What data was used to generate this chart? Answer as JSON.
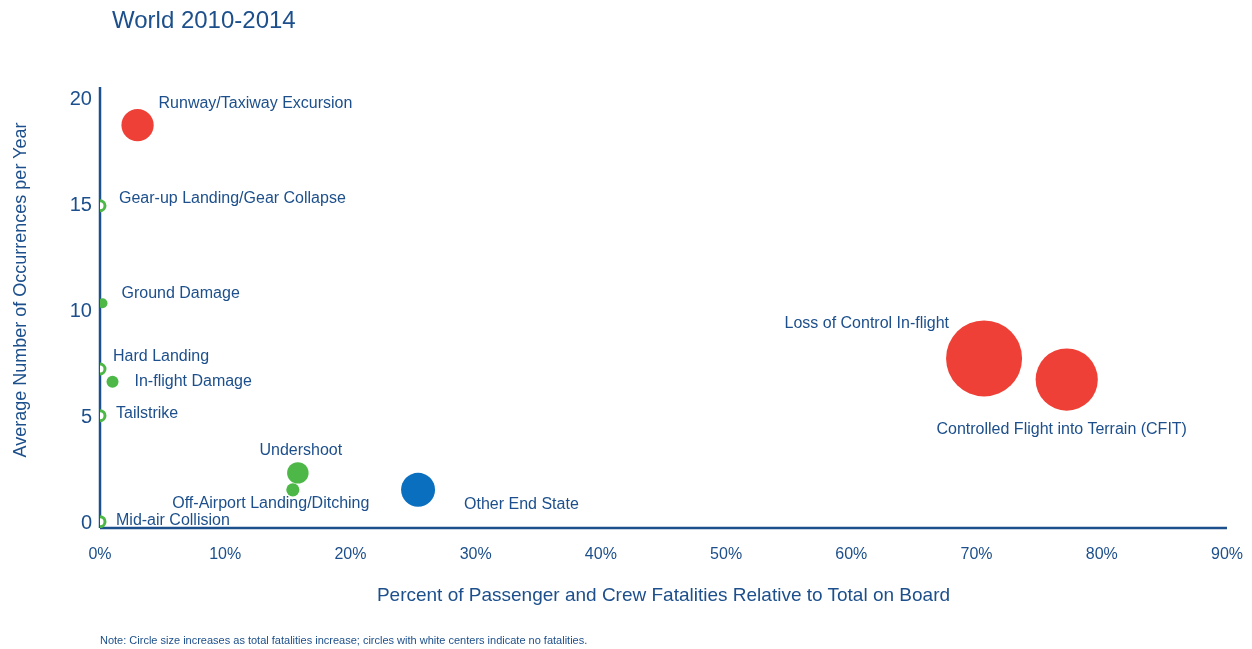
{
  "chart_data": {
    "type": "bubble",
    "title": "World 2010-2014",
    "xlabel": "Percent of Passenger and Crew Fatalities Relative to Total on Board",
    "ylabel": "Average Number of Occurrences per Year",
    "xlim": [
      0,
      90
    ],
    "ylim": [
      -0.3,
      20.5
    ],
    "xticks": [
      {
        "value": 0,
        "label": "0%"
      },
      {
        "value": 10,
        "label": "10%"
      },
      {
        "value": 20,
        "label": "20%"
      },
      {
        "value": 30,
        "label": "30%"
      },
      {
        "value": 40,
        "label": "40%"
      },
      {
        "value": 50,
        "label": "50%"
      },
      {
        "value": 60,
        "label": "60%"
      },
      {
        "value": 70,
        "label": "70%"
      },
      {
        "value": 80,
        "label": "80%"
      },
      {
        "value": 90,
        "label": "90%"
      }
    ],
    "yticks": [
      0,
      5,
      10,
      15,
      20
    ],
    "series": [
      {
        "color": "#ee4036",
        "x": [
          3.0,
          70.6,
          77.2
        ],
        "values": [
          18.7,
          7.7,
          6.7
        ],
        "sizes": [
          0.18,
          1,
          0.67
        ]
      },
      {
        "color": "#4db848",
        "x": [
          0.2,
          1.0,
          15.8,
          15.4
        ],
        "values": [
          10.3,
          6.6,
          2.3,
          1.5
        ],
        "sizes": [
          0.017,
          0.025,
          0.08,
          0.03
        ]
      },
      {
        "color": "#0a6fbf",
        "x": [
          25.4
        ],
        "values": [
          1.5
        ],
        "sizes": [
          0.2
        ]
      },
      {
        "type": "scatter",
        "color": "#4db848",
        "x": [
          0,
          0,
          0,
          0
        ],
        "values": [
          14.9,
          7.2,
          5.0,
          0
        ]
      }
    ],
    "annotations": [
      {
        "text": "Runway/Taxiway Excursion",
        "x": 3.0,
        "y": 18.7
      },
      {
        "text": "Gear-up Landing/Gear Collapse",
        "x": 0,
        "y": 14.9
      },
      {
        "text": "Ground Damage",
        "x": 0.2,
        "y": 10.3
      },
      {
        "text": "Hard Landing",
        "x": 0,
        "y": 7.2
      },
      {
        "text": "In-flight Damage",
        "x": 1.0,
        "y": 6.6
      },
      {
        "text": "Tailstrike",
        "x": 0,
        "y": 5.0
      },
      {
        "text": "Undershoot",
        "x": 15.8,
        "y": 2.3
      },
      {
        "text": "Off-Airport Landing/Ditching",
        "x": 15.4,
        "y": 1.5
      },
      {
        "text": "Other End State",
        "x": 25.4,
        "y": 1.5
      },
      {
        "text": "Mid-air Collision",
        "x": 0,
        "y": 0
      },
      {
        "text": "Loss of Control In-flight",
        "x": 70.6,
        "y": 7.7
      },
      {
        "text": "Controlled Flight into Terrain (CFIT)",
        "x": 77.2,
        "y": 6.7
      },
      "Note: Circle size increases as total fatalities increase; circles with white centers indicate no fatalities."
    ]
  }
}
